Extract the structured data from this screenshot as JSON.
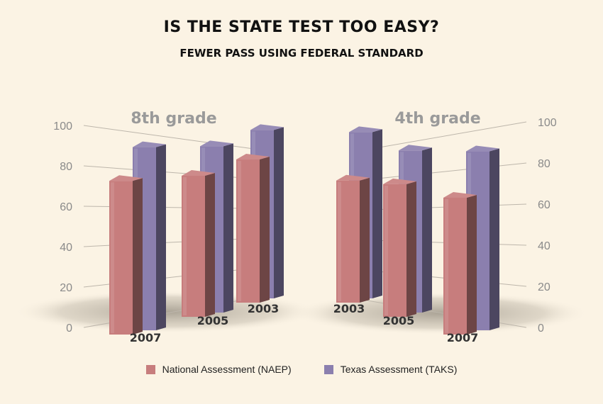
{
  "title": "IS THE STATE TEST TOO EASY?",
  "subtitle": "FEWER PASS USING FEDERAL STANDARD",
  "colors": {
    "naep": "#c77d7d",
    "taks": "#8b7fae",
    "axis_text": "#8a8a8a",
    "grid": "#bdb6ab",
    "panel_title": "#9a9a9a"
  },
  "legend": [
    {
      "label": "National Assessment (NAEP)",
      "color": "#c77d7d"
    },
    {
      "label": "Texas Assessment (TAKS)",
      "color": "#8b7fae"
    }
  ],
  "chart_data": [
    {
      "type": "bar",
      "title": "8th grade",
      "categories": [
        "2007",
        "2005",
        "2003"
      ],
      "series": [
        {
          "name": "National Assessment (NAEP)",
          "values": [
            73,
            67,
            68
          ]
        },
        {
          "name": "Texas Assessment (TAKS)",
          "values": [
            87,
            79,
            80
          ]
        }
      ],
      "ylim": [
        0,
        100
      ],
      "yticks": [
        0,
        20,
        40,
        60,
        80,
        100
      ],
      "axis_side": "left"
    },
    {
      "type": "bar",
      "title": "4th grade",
      "categories": [
        "2003",
        "2005",
        "2007"
      ],
      "series": [
        {
          "name": "National Assessment (NAEP)",
          "values": [
            58,
            63,
            65
          ]
        },
        {
          "name": "Texas Assessment (TAKS)",
          "values": [
            79,
            77,
            85
          ]
        }
      ],
      "ylim": [
        0,
        100
      ],
      "yticks": [
        0,
        20,
        40,
        60,
        80,
        100
      ],
      "axis_side": "right"
    }
  ]
}
